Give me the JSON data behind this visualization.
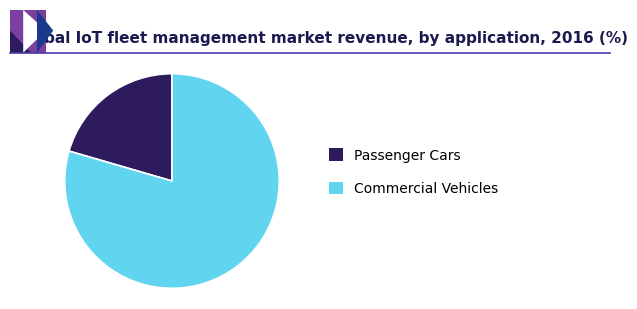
{
  "title": "Global IoT fleet management market revenue, by application, 2016 (%)",
  "slices": [
    20.5,
    79.5
  ],
  "labels": [
    "Passenger Cars",
    "Commercial Vehicles"
  ],
  "colors": [
    "#2d1b5e",
    "#61d4f0"
  ],
  "background_color": "#ffffff",
  "title_fontsize": 11,
  "title_color": "#1a1a4e",
  "legend_fontsize": 10,
  "start_angle": 90,
  "line_color": "#4a3aaa",
  "corner_purple": "#7b3fa0",
  "corner_dark": "#2d1b5e",
  "corner_blue": "#1a3a8c"
}
